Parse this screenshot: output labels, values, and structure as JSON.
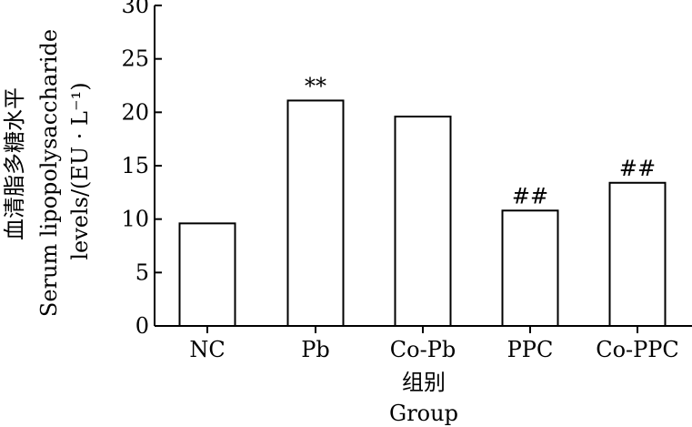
{
  "chart_data": {
    "type": "bar",
    "categories": [
      "NC",
      "Pb",
      "Co-Pb",
      "PPC",
      "Co-PPC"
    ],
    "values": [
      9.6,
      21.1,
      19.6,
      10.8,
      13.4
    ],
    "annotations": [
      "",
      "**",
      "",
      "##",
      "##"
    ],
    "ylim": [
      0,
      30
    ],
    "yticks": [
      0,
      5,
      10,
      15,
      20,
      25,
      30
    ],
    "ytick_labels": [
      "0",
      "5",
      "10",
      "15",
      "20",
      "25",
      "30"
    ],
    "ylabel_cn": "血清脂多糖水平",
    "ylabel_en_1": "Serum lipopolysaccharide",
    "ylabel_en_2": "levels/(EU · L⁻¹)",
    "xlabel_cn": "组别",
    "xlabel_en": "Group",
    "grid": false,
    "colors": {
      "bar_fill": "#ffffff",
      "bar_stroke": "#000000",
      "axis": "#000000"
    }
  }
}
